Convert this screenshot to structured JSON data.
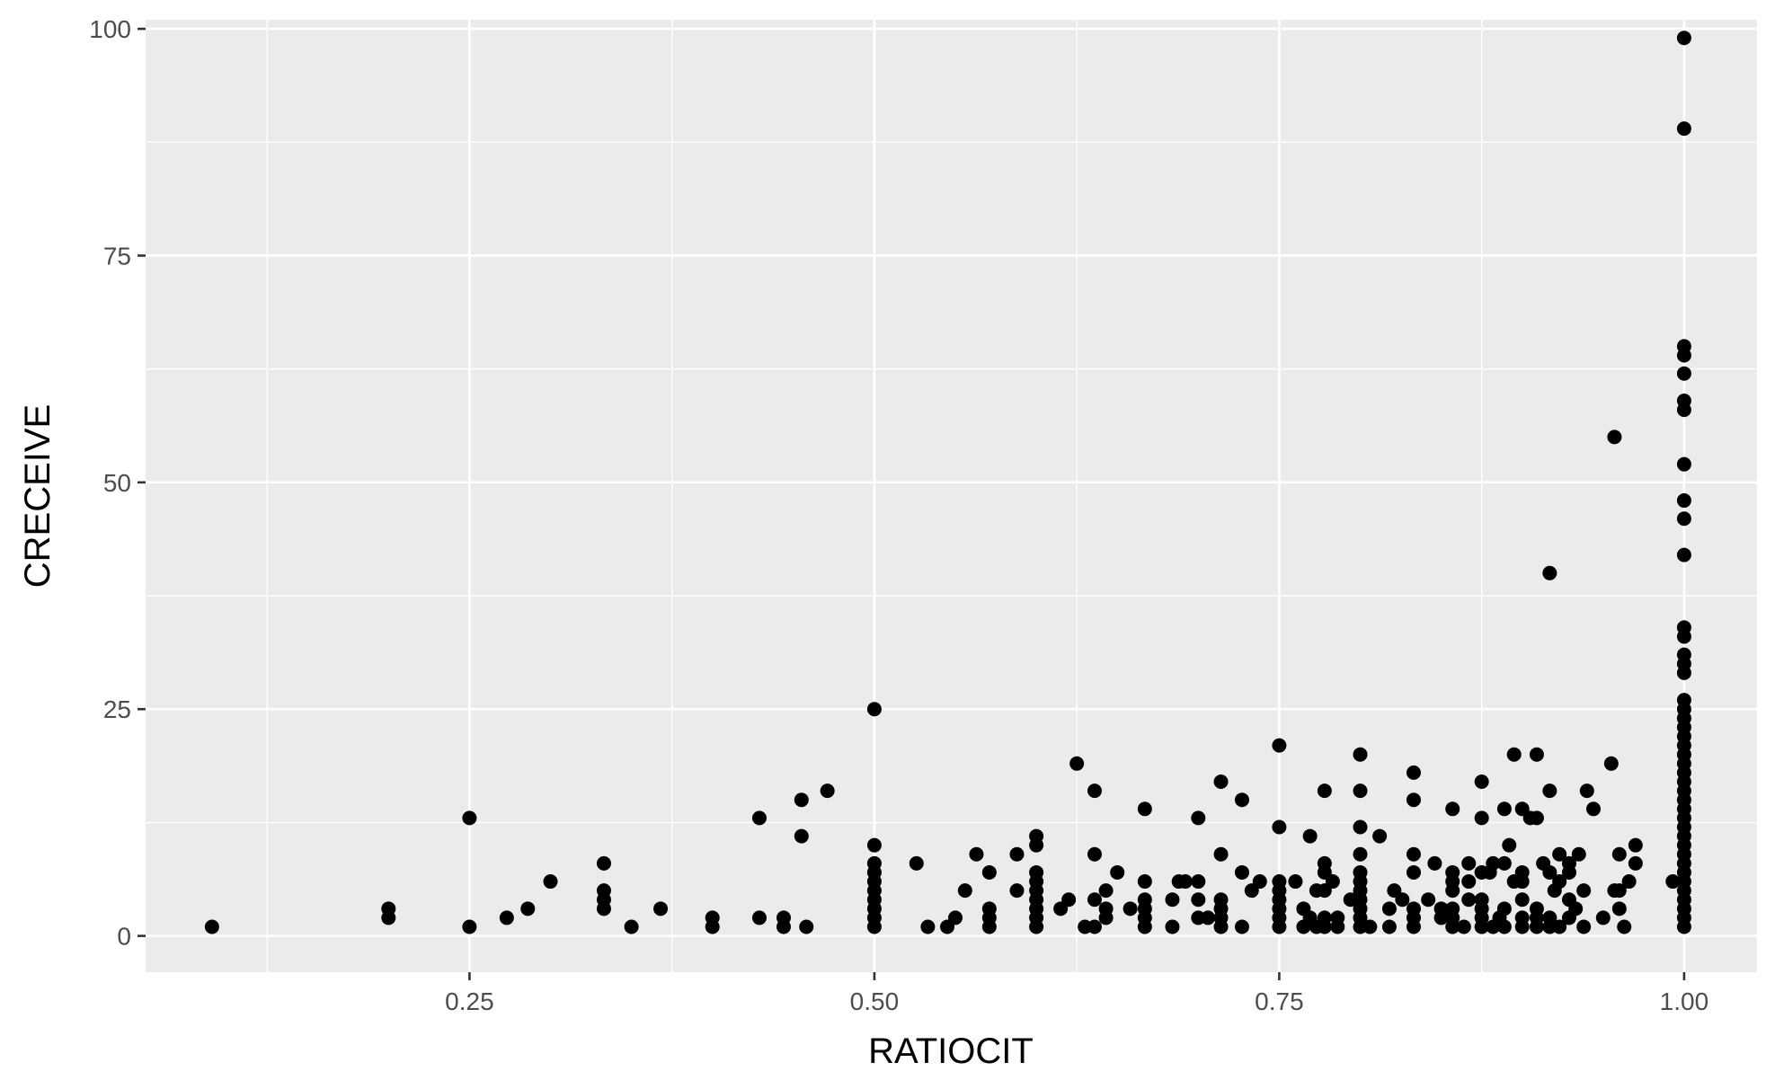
{
  "chart_data": {
    "type": "scatter",
    "title": "",
    "xlabel": "RATIOCIT",
    "ylabel": "CRECEIVE",
    "xlim": [
      0.05,
      1.045
    ],
    "ylim": [
      -4,
      101
    ],
    "x_ticks": [
      0.25,
      0.5,
      0.75,
      1.0
    ],
    "x_tick_labels": [
      "0.25",
      "0.50",
      "0.75",
      "1.00"
    ],
    "y_ticks": [
      0,
      25,
      50,
      75,
      100
    ],
    "y_tick_labels": [
      "0",
      "25",
      "50",
      "75",
      "100"
    ],
    "grid": true,
    "legend": "none",
    "point_color": "#000000",
    "panel_color": "#ebebeb",
    "points": [
      [
        0.091,
        1
      ],
      [
        0.2,
        2
      ],
      [
        0.2,
        3
      ],
      [
        0.25,
        1
      ],
      [
        0.25,
        13
      ],
      [
        0.273,
        2
      ],
      [
        0.286,
        3
      ],
      [
        0.3,
        6
      ],
      [
        0.333,
        3
      ],
      [
        0.333,
        4
      ],
      [
        0.333,
        5
      ],
      [
        0.333,
        8
      ],
      [
        0.35,
        1
      ],
      [
        0.368,
        3
      ],
      [
        0.4,
        1
      ],
      [
        0.4,
        2
      ],
      [
        0.429,
        2
      ],
      [
        0.429,
        13
      ],
      [
        0.444,
        1
      ],
      [
        0.444,
        2
      ],
      [
        0.455,
        11
      ],
      [
        0.455,
        15
      ],
      [
        0.458,
        1
      ],
      [
        0.471,
        16
      ],
      [
        0.5,
        1
      ],
      [
        0.5,
        2
      ],
      [
        0.5,
        3
      ],
      [
        0.5,
        4
      ],
      [
        0.5,
        5
      ],
      [
        0.5,
        6
      ],
      [
        0.5,
        7
      ],
      [
        0.5,
        8
      ],
      [
        0.5,
        10
      ],
      [
        0.5,
        25
      ],
      [
        0.526,
        8
      ],
      [
        0.533,
        1
      ],
      [
        0.545,
        1
      ],
      [
        0.55,
        2
      ],
      [
        0.556,
        5
      ],
      [
        0.563,
        9
      ],
      [
        0.571,
        1
      ],
      [
        0.571,
        2
      ],
      [
        0.571,
        3
      ],
      [
        0.571,
        7
      ],
      [
        0.588,
        5
      ],
      [
        0.588,
        9
      ],
      [
        0.6,
        1
      ],
      [
        0.6,
        2
      ],
      [
        0.6,
        3
      ],
      [
        0.6,
        4
      ],
      [
        0.6,
        5
      ],
      [
        0.6,
        6
      ],
      [
        0.6,
        7
      ],
      [
        0.6,
        10
      ],
      [
        0.6,
        11
      ],
      [
        0.615,
        3
      ],
      [
        0.62,
        4
      ],
      [
        0.625,
        19
      ],
      [
        0.63,
        1
      ],
      [
        0.636,
        1
      ],
      [
        0.636,
        4
      ],
      [
        0.636,
        9
      ],
      [
        0.636,
        16
      ],
      [
        0.643,
        2
      ],
      [
        0.643,
        3
      ],
      [
        0.643,
        5
      ],
      [
        0.65,
        7
      ],
      [
        0.658,
        3
      ],
      [
        0.667,
        1
      ],
      [
        0.667,
        2
      ],
      [
        0.667,
        3
      ],
      [
        0.667,
        4
      ],
      [
        0.667,
        6
      ],
      [
        0.667,
        14
      ],
      [
        0.684,
        1
      ],
      [
        0.684,
        4
      ],
      [
        0.688,
        6
      ],
      [
        0.692,
        6
      ],
      [
        0.7,
        2
      ],
      [
        0.7,
        4
      ],
      [
        0.7,
        6
      ],
      [
        0.7,
        13
      ],
      [
        0.706,
        2
      ],
      [
        0.714,
        1
      ],
      [
        0.714,
        2
      ],
      [
        0.714,
        3
      ],
      [
        0.714,
        4
      ],
      [
        0.714,
        9
      ],
      [
        0.714,
        17
      ],
      [
        0.727,
        1
      ],
      [
        0.727,
        7
      ],
      [
        0.727,
        15
      ],
      [
        0.733,
        5
      ],
      [
        0.738,
        6
      ],
      [
        0.75,
        1
      ],
      [
        0.75,
        2
      ],
      [
        0.75,
        3
      ],
      [
        0.75,
        4
      ],
      [
        0.75,
        5
      ],
      [
        0.75,
        6
      ],
      [
        0.75,
        12
      ],
      [
        0.75,
        21
      ],
      [
        0.76,
        6
      ],
      [
        0.765,
        1
      ],
      [
        0.765,
        3
      ],
      [
        0.769,
        2
      ],
      [
        0.769,
        11
      ],
      [
        0.773,
        1
      ],
      [
        0.773,
        5
      ],
      [
        0.778,
        1
      ],
      [
        0.778,
        2
      ],
      [
        0.778,
        5
      ],
      [
        0.778,
        7
      ],
      [
        0.778,
        8
      ],
      [
        0.778,
        16
      ],
      [
        0.783,
        6
      ],
      [
        0.786,
        1
      ],
      [
        0.786,
        2
      ],
      [
        0.794,
        4
      ],
      [
        0.8,
        1
      ],
      [
        0.8,
        2
      ],
      [
        0.8,
        3
      ],
      [
        0.8,
        4
      ],
      [
        0.8,
        5
      ],
      [
        0.8,
        6
      ],
      [
        0.8,
        7
      ],
      [
        0.8,
        9
      ],
      [
        0.8,
        12
      ],
      [
        0.8,
        16
      ],
      [
        0.8,
        20
      ],
      [
        0.806,
        1
      ],
      [
        0.812,
        11
      ],
      [
        0.818,
        1
      ],
      [
        0.818,
        3
      ],
      [
        0.821,
        5
      ],
      [
        0.826,
        4
      ],
      [
        0.833,
        1
      ],
      [
        0.833,
        2
      ],
      [
        0.833,
        3
      ],
      [
        0.833,
        7
      ],
      [
        0.833,
        9
      ],
      [
        0.833,
        15
      ],
      [
        0.833,
        18
      ],
      [
        0.842,
        4
      ],
      [
        0.846,
        8
      ],
      [
        0.85,
        2
      ],
      [
        0.85,
        3
      ],
      [
        0.857,
        1
      ],
      [
        0.857,
        2
      ],
      [
        0.857,
        3
      ],
      [
        0.857,
        5
      ],
      [
        0.857,
        6
      ],
      [
        0.857,
        7
      ],
      [
        0.857,
        14
      ],
      [
        0.864,
        1
      ],
      [
        0.867,
        4
      ],
      [
        0.867,
        6
      ],
      [
        0.867,
        8
      ],
      [
        0.875,
        1
      ],
      [
        0.875,
        2
      ],
      [
        0.875,
        3
      ],
      [
        0.875,
        4
      ],
      [
        0.875,
        7
      ],
      [
        0.875,
        13
      ],
      [
        0.875,
        17
      ],
      [
        0.88,
        7
      ],
      [
        0.882,
        1
      ],
      [
        0.882,
        8
      ],
      [
        0.886,
        2
      ],
      [
        0.889,
        1
      ],
      [
        0.889,
        3
      ],
      [
        0.889,
        8
      ],
      [
        0.889,
        14
      ],
      [
        0.892,
        10
      ],
      [
        0.895,
        6
      ],
      [
        0.895,
        20
      ],
      [
        0.9,
        1
      ],
      [
        0.9,
        2
      ],
      [
        0.9,
        4
      ],
      [
        0.9,
        6
      ],
      [
        0.9,
        7
      ],
      [
        0.9,
        14
      ],
      [
        0.905,
        13
      ],
      [
        0.909,
        1
      ],
      [
        0.909,
        2
      ],
      [
        0.909,
        3
      ],
      [
        0.909,
        13
      ],
      [
        0.909,
        20
      ],
      [
        0.913,
        8
      ],
      [
        0.917,
        1
      ],
      [
        0.917,
        2
      ],
      [
        0.917,
        7
      ],
      [
        0.917,
        16
      ],
      [
        0.917,
        40
      ],
      [
        0.92,
        5
      ],
      [
        0.923,
        1
      ],
      [
        0.923,
        6
      ],
      [
        0.923,
        9
      ],
      [
        0.929,
        2
      ],
      [
        0.929,
        4
      ],
      [
        0.929,
        7
      ],
      [
        0.929,
        8
      ],
      [
        0.933,
        3
      ],
      [
        0.935,
        9
      ],
      [
        0.938,
        1
      ],
      [
        0.938,
        5
      ],
      [
        0.94,
        16
      ],
      [
        0.944,
        14
      ],
      [
        0.95,
        2
      ],
      [
        0.955,
        19
      ],
      [
        0.957,
        5
      ],
      [
        0.957,
        55
      ],
      [
        0.96,
        3
      ],
      [
        0.96,
        5
      ],
      [
        0.96,
        9
      ],
      [
        0.963,
        1
      ],
      [
        0.966,
        6
      ],
      [
        0.97,
        8
      ],
      [
        0.97,
        10
      ],
      [
        0.993,
        6
      ],
      [
        1.0,
        1
      ],
      [
        1.0,
        2
      ],
      [
        1.0,
        3
      ],
      [
        1.0,
        4
      ],
      [
        1.0,
        5
      ],
      [
        1.0,
        6
      ],
      [
        1.0,
        7
      ],
      [
        1.0,
        8
      ],
      [
        1.0,
        9
      ],
      [
        1.0,
        10
      ],
      [
        1.0,
        11
      ],
      [
        1.0,
        12
      ],
      [
        1.0,
        13
      ],
      [
        1.0,
        14
      ],
      [
        1.0,
        15
      ],
      [
        1.0,
        16
      ],
      [
        1.0,
        17
      ],
      [
        1.0,
        18
      ],
      [
        1.0,
        19
      ],
      [
        1.0,
        20
      ],
      [
        1.0,
        21
      ],
      [
        1.0,
        22
      ],
      [
        1.0,
        23
      ],
      [
        1.0,
        24
      ],
      [
        1.0,
        25
      ],
      [
        1.0,
        26
      ],
      [
        1.0,
        29
      ],
      [
        1.0,
        30
      ],
      [
        1.0,
        31
      ],
      [
        1.0,
        33
      ],
      [
        1.0,
        34
      ],
      [
        1.0,
        42
      ],
      [
        1.0,
        46
      ],
      [
        1.0,
        48
      ],
      [
        1.0,
        52
      ],
      [
        1.0,
        58
      ],
      [
        1.0,
        59
      ],
      [
        1.0,
        62
      ],
      [
        1.0,
        64
      ],
      [
        1.0,
        65
      ],
      [
        1.0,
        89
      ],
      [
        1.0,
        99
      ]
    ]
  }
}
